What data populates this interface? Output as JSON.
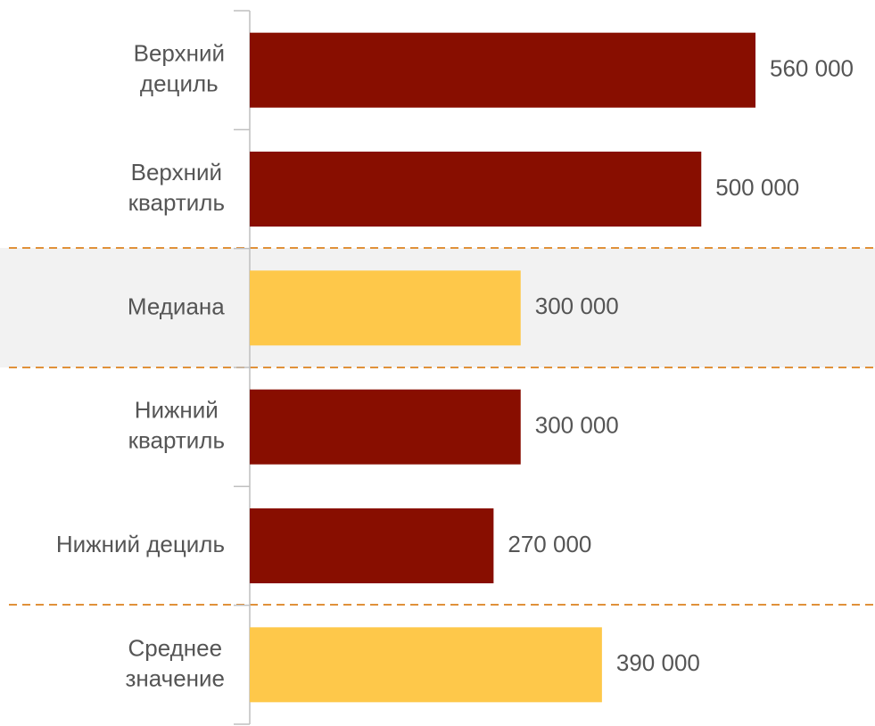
{
  "chart_data": {
    "type": "bar",
    "orientation": "horizontal",
    "categories": [
      "Верхний\nдециль",
      "Верхний\nквартиль",
      "Медиана",
      "Нижний\nквартиль",
      "Нижний дециль",
      "Среднее\nзначение"
    ],
    "values": [
      560000,
      500000,
      300000,
      300000,
      270000,
      390000
    ],
    "value_labels": [
      "560 000",
      "500 000",
      "300 000",
      "300 000",
      "270 000",
      "390 000"
    ],
    "colors": [
      "#880e00",
      "#880e00",
      "#fec84a",
      "#880e00",
      "#880e00",
      "#fec84a"
    ]
  }
}
